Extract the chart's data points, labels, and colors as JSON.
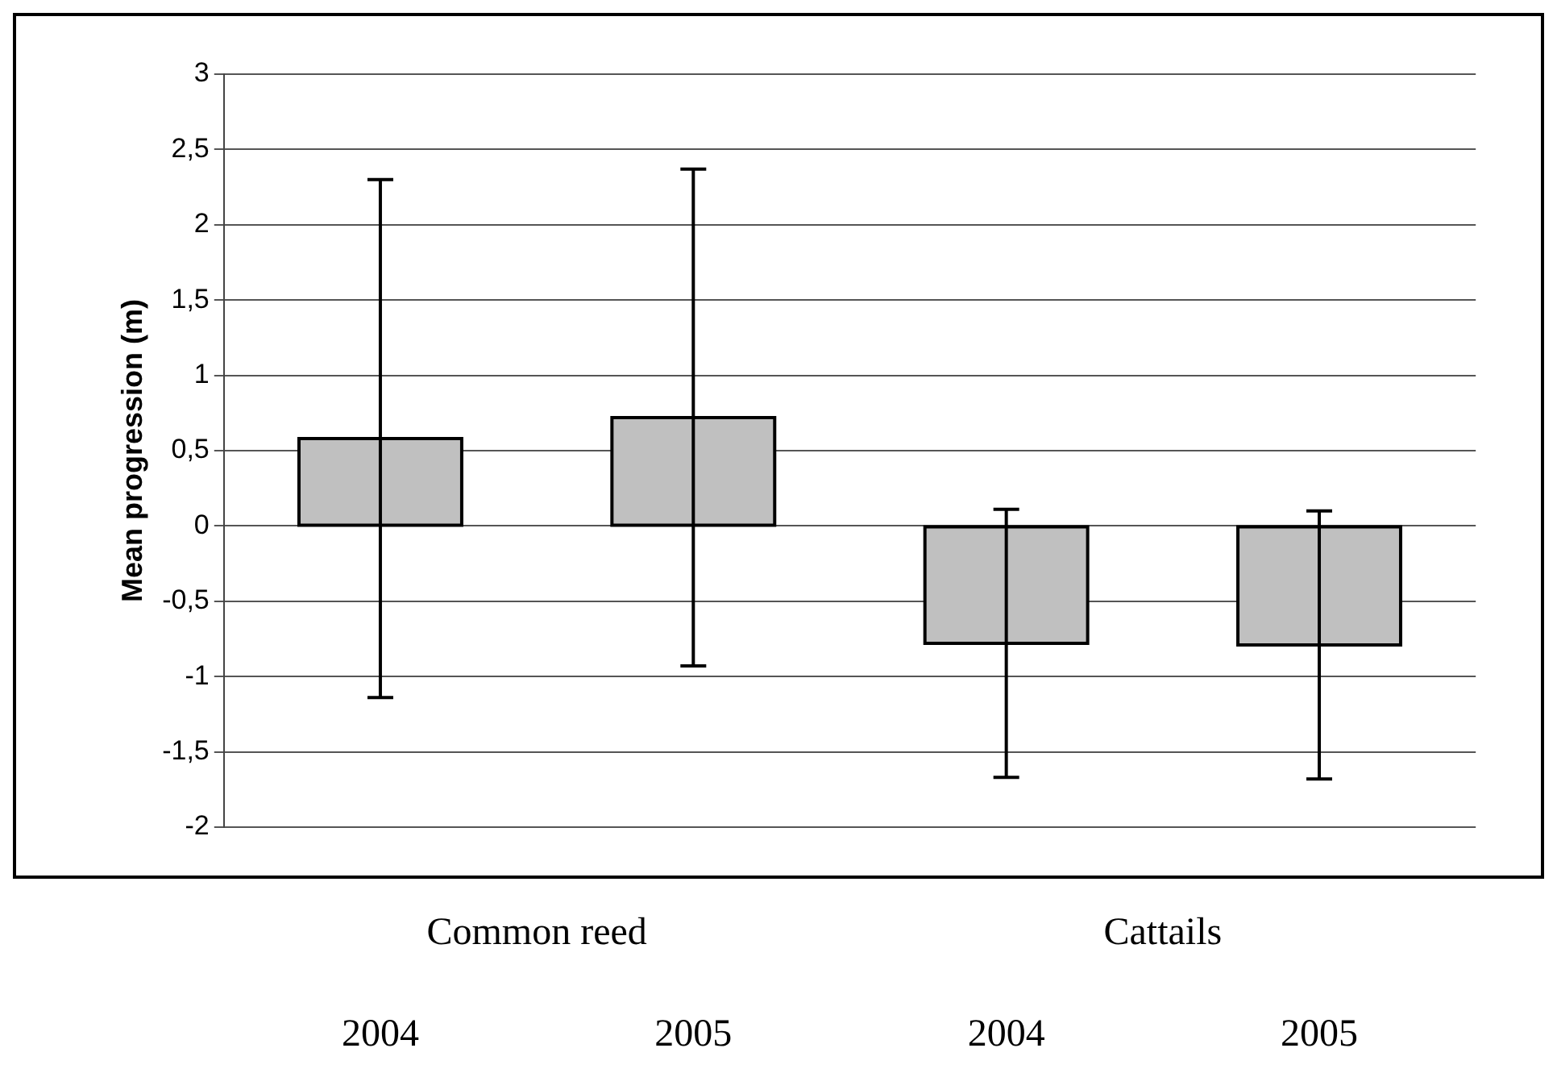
{
  "chart_data": {
    "type": "bar",
    "ylabel": "Mean progression (m)",
    "categories": [
      "2004",
      "2005",
      "2004",
      "2005"
    ],
    "values": [
      0.58,
      0.72,
      -0.78,
      -0.79
    ],
    "errors": [
      1.72,
      1.65,
      0.89,
      0.89
    ],
    "color": "#c0c0c0",
    "ylim": [
      -2,
      3
    ],
    "yticks": [
      -2,
      {
        "value": -1.5,
        "label": "-1,5"
      },
      -1,
      {
        "value": -0.5,
        "label": "-0,5"
      },
      0,
      {
        "value": 0.5,
        "label": "0,5"
      },
      1,
      {
        "value": 1.5,
        "label": "1,5"
      },
      2,
      {
        "value": 2.5,
        "label": "2,5"
      },
      3
    ],
    "grid": "y",
    "annotations": [
      "Common reed",
      "Cattails"
    ]
  }
}
